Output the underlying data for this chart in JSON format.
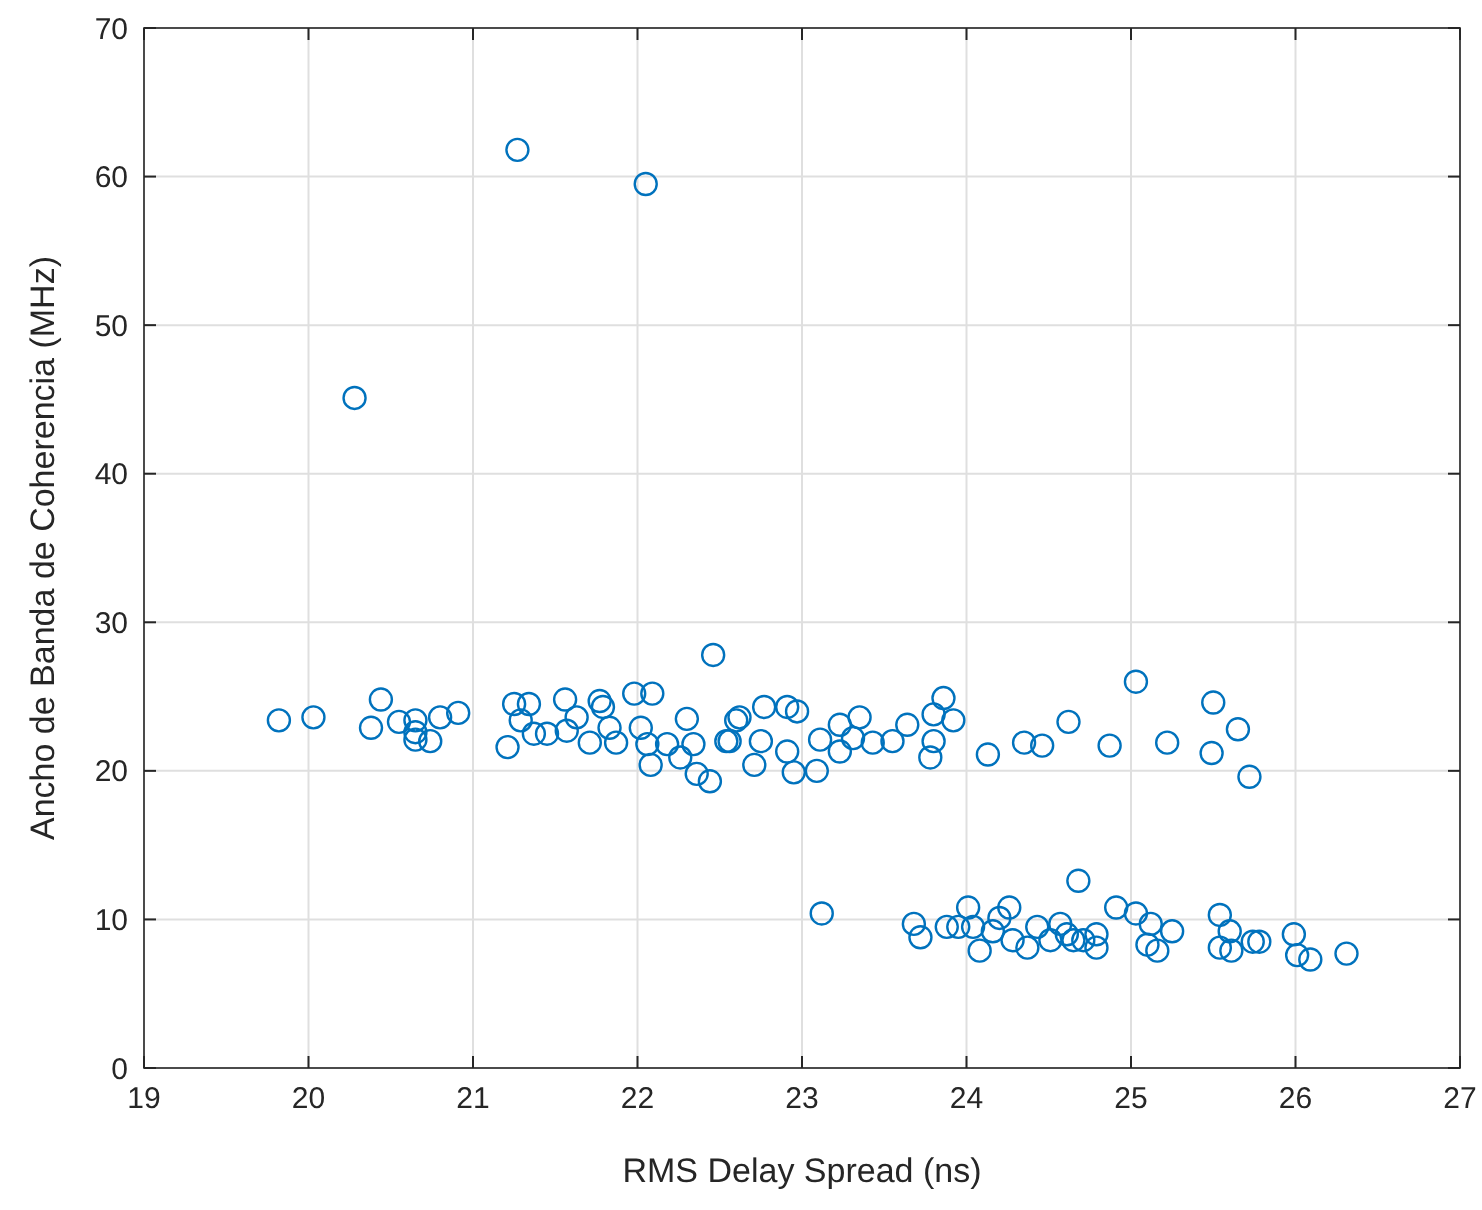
{
  "chart_data": {
    "type": "scatter",
    "xlabel": "RMS Delay Spread (ns)",
    "ylabel": "Ancho de Banda de Coherencia (MHz)",
    "xlim": [
      19,
      27
    ],
    "xticks": [
      19,
      20,
      21,
      22,
      23,
      24,
      25,
      26,
      27
    ],
    "ylim": [
      0,
      70
    ],
    "yticks": [
      0,
      10,
      20,
      30,
      40,
      50,
      60,
      70
    ],
    "grid": true,
    "marker": "circle",
    "series": [
      {
        "color": "#0072bd",
        "x": [
          19.82,
          20.03,
          20.44,
          20.38,
          20.55,
          20.65,
          20.65,
          20.65,
          20.74,
          20.8,
          20.91,
          21.21,
          21.25,
          21.34,
          21.29,
          21.37,
          21.45,
          21.56,
          21.57,
          21.63,
          21.71,
          21.77,
          21.79,
          21.83,
          21.87,
          21.98,
          22.09,
          22.02,
          22.06,
          22.08,
          22.18,
          22.3,
          22.26,
          22.36,
          22.44,
          22.34,
          22.46,
          22.54,
          22.6,
          22.62,
          22.56,
          22.71,
          22.77,
          22.75,
          22.91,
          22.97,
          22.95,
          22.91,
          23.09,
          23.11,
          23.23,
          23.23,
          23.35,
          23.31,
          23.43,
          23.55,
          23.64,
          23.78,
          23.8,
          23.86,
          23.92,
          23.8,
          24.13,
          24.35,
          24.46,
          24.62,
          24.87,
          25.03,
          25.22,
          25.5,
          25.49,
          25.65,
          25.72,
          23.12,
          23.68,
          23.72,
          23.88,
          23.95,
          24.01,
          24.08,
          24.04,
          24.16,
          24.26,
          24.2,
          24.28,
          24.37,
          24.43,
          24.51,
          24.57,
          24.61,
          24.65,
          24.68,
          24.71,
          24.79,
          24.79,
          24.91,
          25.03,
          25.12,
          25.1,
          25.16,
          25.25,
          25.54,
          25.6,
          25.54,
          25.61,
          25.74,
          25.78,
          25.99,
          26.01,
          26.09,
          26.31,
          20.28,
          21.27,
          22.05
        ],
        "values": [
          23.4,
          23.6,
          24.8,
          22.9,
          23.3,
          23.4,
          22.6,
          22.1,
          22.0,
          23.6,
          23.9,
          21.6,
          24.5,
          24.5,
          23.4,
          22.5,
          22.5,
          24.8,
          22.7,
          23.6,
          21.9,
          24.7,
          24.3,
          22.9,
          21.9,
          25.2,
          25.2,
          22.9,
          21.8,
          20.4,
          21.8,
          23.5,
          20.9,
          19.8,
          19.3,
          21.8,
          27.8,
          22.0,
          23.4,
          23.6,
          22.0,
          20.4,
          24.3,
          22.0,
          24.3,
          24.0,
          19.9,
          21.3,
          20.0,
          22.1,
          23.1,
          21.3,
          23.6,
          22.2,
          21.9,
          22.0,
          23.1,
          20.9,
          23.8,
          24.9,
          23.4,
          22.0,
          21.1,
          21.9,
          21.7,
          23.3,
          21.7,
          26.0,
          21.9,
          24.6,
          21.2,
          22.8,
          19.6,
          10.4,
          9.7,
          8.8,
          9.5,
          9.5,
          10.8,
          7.9,
          9.5,
          9.2,
          10.8,
          10.1,
          8.6,
          8.1,
          9.5,
          8.6,
          9.7,
          9.0,
          8.6,
          12.6,
          8.6,
          8.1,
          9.0,
          10.8,
          10.4,
          9.7,
          8.3,
          7.9,
          9.2,
          10.3,
          9.2,
          8.1,
          7.9,
          8.5,
          8.5,
          9.0,
          7.6,
          7.3,
          7.7,
          45.1,
          61.8,
          59.5
        ]
      }
    ]
  }
}
